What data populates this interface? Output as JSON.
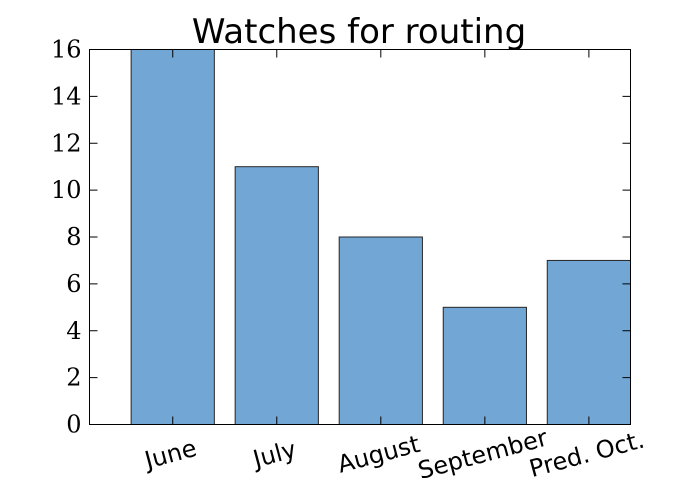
{
  "chart_data": {
    "type": "bar",
    "title": "Watches for routing",
    "xlabel": "",
    "ylabel": "",
    "categories": [
      "June",
      "July",
      "August",
      "September",
      "Pred. Oct."
    ],
    "values": [
      16,
      11,
      8,
      5,
      7
    ],
    "ylim": [
      0,
      16
    ],
    "yticks": [
      "0",
      "2",
      "4",
      "6",
      "8",
      "10",
      "12",
      "14",
      "16"
    ],
    "grid": false,
    "bar_color": "#72a6d5",
    "bar_edge_color": "#262626"
  }
}
